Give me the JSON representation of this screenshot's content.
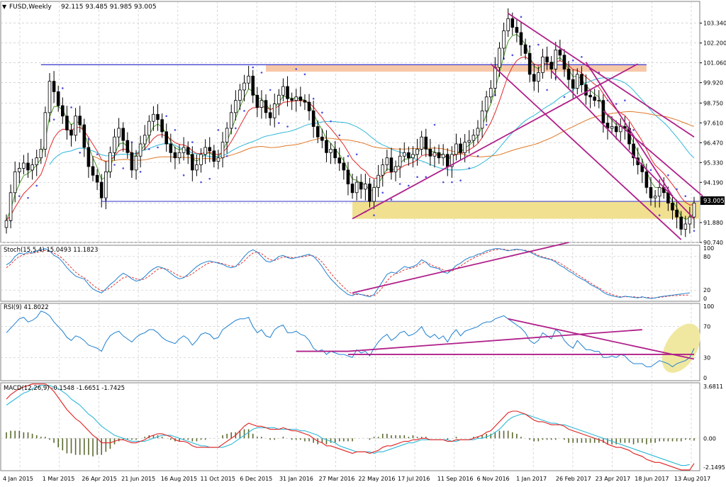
{
  "chart_data": {
    "type": "candlestick",
    "symbol_title": "FUSD,Weekly",
    "ohlc_header": "92.115 93.485 91.985 93.005",
    "last_price_label": "93.005",
    "price_axis": {
      "ylim": [
        90.74,
        104.1
      ],
      "ticks": [
        "103.340",
        "102.200",
        "101.060",
        "99.920",
        "98.750",
        "97.610",
        "96.470",
        "95.330",
        "94.190",
        "93.005",
        "91.880",
        "90.740"
      ]
    },
    "x_labels": [
      "4 Jan 2015",
      "1 Mar 2015",
      "26 Apr 2015",
      "21 Jun 2015",
      "16 Aug 2015",
      "11 Oct 2015",
      "6 Dec 2015",
      "31 Jan 2016",
      "27 Mar 2016",
      "22 May 2016",
      "17 Jul 2016",
      "11 Sep 2016",
      "6 Nov 2016",
      "1 Jan 2017",
      "26 Feb 2017",
      "23 Apr 2017",
      "18 Jun 2017",
      "13 Aug 2017"
    ],
    "weekly_close": [
      92.0,
      93.6,
      94.8,
      95.0,
      95.3,
      94.9,
      95.2,
      95.6,
      96.1,
      98.2,
      100.0,
      99.4,
      98.6,
      98.0,
      97.2,
      96.9,
      98.0,
      97.5,
      96.2,
      95.1,
      94.6,
      94.2,
      93.3,
      94.8,
      95.9,
      96.8,
      97.3,
      96.6,
      95.9,
      94.9,
      95.7,
      96.4,
      96.9,
      97.7,
      98.1,
      97.8,
      97.1,
      96.4,
      95.9,
      95.6,
      95.9,
      96.2,
      95.8,
      94.9,
      95.2,
      95.8,
      96.2,
      96.0,
      95.4,
      95.6,
      96.5,
      97.3,
      98.2,
      98.9,
      99.5,
      99.9,
      100.3,
      99.2,
      98.5,
      98.9,
      98.2,
      97.9,
      98.7,
      99.2,
      99.7,
      99.0,
      98.9,
      99.1,
      98.9,
      98.8,
      98.3,
      97.4,
      96.8,
      96.6,
      95.9,
      96.1,
      95.6,
      95.3,
      94.9,
      94.1,
      93.6,
      94.2,
      93.8,
      94.1,
      93.1,
      93.9,
      94.6,
      95.2,
      95.6,
      94.8,
      95.1,
      95.7,
      95.9,
      95.6,
      95.8,
      96.1,
      96.8,
      96.1,
      95.7,
      95.9,
      95.6,
      95.8,
      95.1,
      95.8,
      96.4,
      95.9,
      96.5,
      96.6,
      96.9,
      97.3,
      98.3,
      99.1,
      99.6,
      100.8,
      101.9,
      102.9,
      103.6,
      103.1,
      102.8,
      102.1,
      101.6,
      100.4,
      100.0,
      100.5,
      101.4,
      101.1,
      100.7,
      101.8,
      101.5,
      100.7,
      100.1,
      99.6,
      100.4,
      99.8,
      99.2,
      99.1,
      98.9,
      98.9,
      97.6,
      97.3,
      97.4,
      97.1,
      97.4,
      97.3,
      96.4,
      95.6,
      95.2,
      94.8,
      93.9,
      93.3,
      93.4,
      93.9,
      93.6,
      93.0,
      92.6,
      92.2,
      91.5,
      91.8,
      92.2,
      93.005
    ]
  },
  "stoch": {
    "label": "Stoch(15,5,4) 15.0493 11.1823",
    "ticks": [
      "80",
      "20"
    ],
    "scale_max": "100",
    "scale_min": "0",
    "main": [
      65,
      70,
      80,
      86,
      84,
      88,
      86,
      90,
      92,
      94,
      90,
      82,
      78,
      70,
      60,
      52,
      45,
      42,
      40,
      30,
      22,
      18,
      15,
      22,
      30,
      36,
      44,
      50,
      46,
      40,
      36,
      38,
      44,
      52,
      58,
      62,
      60,
      56,
      50,
      44,
      40,
      42,
      48,
      55,
      62,
      67,
      70,
      72,
      70,
      68,
      66,
      62,
      60,
      62,
      70,
      80,
      88,
      92,
      88,
      80,
      72,
      70,
      74,
      80,
      82,
      78,
      76,
      78,
      80,
      82,
      84,
      80,
      72,
      62,
      50,
      40,
      32,
      24,
      18,
      12,
      10,
      14,
      12,
      10,
      8,
      12,
      24,
      36,
      48,
      52,
      50,
      56,
      62,
      60,
      62,
      66,
      74,
      70,
      62,
      60,
      58,
      52,
      50,
      56,
      64,
      68,
      74,
      78,
      80,
      84,
      86,
      90,
      92,
      94,
      94,
      92,
      90,
      92,
      93,
      92,
      90,
      88,
      84,
      80,
      78,
      76,
      74,
      70,
      64,
      60,
      54,
      50,
      44,
      40,
      36,
      30,
      26,
      22,
      16,
      12,
      10,
      8,
      7,
      9,
      8,
      7,
      6,
      8,
      6,
      5,
      6,
      8,
      9,
      10,
      11,
      12,
      13,
      14,
      15
    ],
    "signal": [
      60,
      66,
      74,
      80,
      83,
      85,
      86,
      87,
      89,
      91,
      90,
      86,
      82,
      76,
      68,
      60,
      52,
      46,
      42,
      36,
      29,
      23,
      19,
      20,
      24,
      30,
      36,
      42,
      44,
      43,
      40,
      38,
      40,
      45,
      51,
      57,
      59,
      58,
      54,
      49,
      45,
      43,
      45,
      49,
      55,
      60,
      65,
      69,
      70,
      69,
      67,
      65,
      63,
      62,
      66,
      72,
      80,
      86,
      88,
      85,
      79,
      74,
      73,
      76,
      79,
      79,
      78,
      78,
      79,
      80,
      82,
      81,
      77,
      70,
      60,
      50,
      41,
      33,
      25,
      18,
      13,
      12,
      12,
      11,
      10,
      10,
      16,
      25,
      36,
      45,
      49,
      52,
      56,
      58,
      60,
      63,
      68,
      70,
      66,
      62,
      60,
      56,
      53,
      54,
      58,
      63,
      68,
      73,
      77,
      81,
      84,
      87,
      90,
      92,
      93,
      93,
      91,
      91,
      92,
      92,
      91,
      89,
      86,
      82,
      79,
      77,
      75,
      72,
      68,
      63,
      58,
      53,
      48,
      43,
      38,
      33,
      28,
      24,
      19,
      15,
      12,
      10,
      8,
      8,
      8,
      8,
      7,
      7,
      7,
      6,
      6,
      7,
      8,
      9,
      10,
      10,
      11,
      11,
      11.1823
    ]
  },
  "rsi": {
    "label": "RSI(9) 41.8022",
    "ticks": [
      "100",
      "70",
      "30",
      "0"
    ],
    "values": [
      62,
      68,
      74,
      80,
      82,
      76,
      78,
      82,
      90,
      88,
      84,
      76,
      70,
      64,
      56,
      52,
      58,
      56,
      52,
      46,
      44,
      42,
      38,
      50,
      58,
      62,
      64,
      58,
      54,
      50,
      56,
      60,
      62,
      66,
      66,
      62,
      56,
      52,
      50,
      48,
      54,
      58,
      54,
      46,
      52,
      60,
      62,
      60,
      54,
      56,
      66,
      70,
      74,
      78,
      80,
      80,
      82,
      70,
      62,
      66,
      58,
      56,
      66,
      70,
      72,
      62,
      62,
      64,
      60,
      58,
      52,
      42,
      38,
      40,
      34,
      38,
      36,
      34,
      34,
      32,
      30,
      40,
      36,
      38,
      32,
      42,
      50,
      56,
      60,
      52,
      56,
      62,
      64,
      58,
      60,
      64,
      70,
      60,
      56,
      60,
      54,
      58,
      50,
      60,
      66,
      58,
      64,
      66,
      68,
      70,
      74,
      76,
      76,
      80,
      82,
      84,
      80,
      76,
      72,
      68,
      62,
      52,
      48,
      52,
      62,
      58,
      54,
      66,
      62,
      52,
      46,
      42,
      52,
      46,
      40,
      40,
      38,
      38,
      30,
      30,
      32,
      30,
      34,
      32,
      26,
      22,
      22,
      22,
      18,
      18,
      22,
      26,
      24,
      22,
      18,
      22,
      24,
      26,
      30,
      41.8022
    ]
  },
  "macd": {
    "label": "MACD(12,26,9) -0.1548 -1.6651 -1.7425",
    "ticks": [
      "3.6811",
      "0.00",
      "-2.1495"
    ],
    "macd": [
      2.6,
      2.9,
      3.1,
      3.3,
      3.4,
      3.5,
      3.6,
      3.6,
      3.6,
      3.6,
      3.4,
      3.1,
      2.7,
      2.3,
      1.9,
      1.6,
      1.3,
      1.1,
      0.8,
      0.5,
      0.2,
      0.0,
      -0.3,
      -0.3,
      -0.3,
      -0.2,
      -0.1,
      -0.1,
      -0.2,
      -0.3,
      -0.3,
      -0.2,
      -0.1,
      0.1,
      0.2,
      0.3,
      0.3,
      0.2,
      0.1,
      -0.1,
      -0.2,
      -0.2,
      -0.3,
      -0.5,
      -0.6,
      -0.6,
      -0.6,
      -0.6,
      -0.6,
      -0.6,
      -0.4,
      -0.2,
      0.0,
      0.2,
      0.5,
      0.8,
      1.0,
      0.9,
      0.8,
      0.8,
      0.7,
      0.6,
      0.6,
      0.6,
      0.7,
      0.6,
      0.5,
      0.5,
      0.4,
      0.3,
      0.2,
      0.0,
      -0.2,
      -0.3,
      -0.5,
      -0.5,
      -0.6,
      -0.7,
      -0.8,
      -0.9,
      -1.0,
      -0.9,
      -0.9,
      -0.9,
      -1.0,
      -0.9,
      -0.8,
      -0.6,
      -0.5,
      -0.5,
      -0.4,
      -0.3,
      -0.2,
      -0.2,
      -0.1,
      -0.1,
      0.0,
      0.0,
      -0.1,
      -0.1,
      -0.1,
      -0.1,
      -0.2,
      -0.2,
      -0.1,
      -0.1,
      -0.1,
      -0.1,
      0.0,
      0.1,
      0.2,
      0.4,
      0.5,
      0.8,
      1.1,
      1.4,
      1.7,
      1.8,
      1.8,
      1.7,
      1.6,
      1.4,
      1.2,
      1.1,
      1.1,
      1.0,
      0.9,
      0.9,
      0.9,
      0.8,
      0.6,
      0.5,
      0.4,
      0.3,
      0.2,
      0.1,
      0.0,
      -0.1,
      -0.2,
      -0.4,
      -0.5,
      -0.6,
      -0.6,
      -0.7,
      -0.8,
      -1.0,
      -1.1,
      -1.2,
      -1.4,
      -1.5,
      -1.6,
      -1.6,
      -1.7,
      -1.8,
      -1.9,
      -2.0,
      -2.1,
      -2.1,
      -2.1,
      -1.6651
    ],
    "signal": [
      2.2,
      2.4,
      2.6,
      2.8,
      3.0,
      3.1,
      3.3,
      3.4,
      3.5,
      3.5,
      3.5,
      3.4,
      3.3,
      3.1,
      2.9,
      2.6,
      2.4,
      2.2,
      1.9,
      1.6,
      1.4,
      1.1,
      0.8,
      0.6,
      0.4,
      0.2,
      0.1,
      0.0,
      -0.1,
      -0.2,
      -0.2,
      -0.2,
      -0.2,
      -0.1,
      0.0,
      0.1,
      0.2,
      0.2,
      0.2,
      0.1,
      0.0,
      -0.1,
      -0.2,
      -0.3,
      -0.4,
      -0.5,
      -0.5,
      -0.6,
      -0.6,
      -0.6,
      -0.6,
      -0.5,
      -0.4,
      -0.2,
      0.0,
      0.2,
      0.4,
      0.6,
      0.7,
      0.7,
      0.7,
      0.7,
      0.7,
      0.6,
      0.6,
      0.6,
      0.6,
      0.6,
      0.5,
      0.5,
      0.4,
      0.3,
      0.2,
      0.0,
      -0.1,
      -0.2,
      -0.3,
      -0.5,
      -0.6,
      -0.7,
      -0.8,
      -0.9,
      -0.9,
      -0.9,
      -0.9,
      -1.0,
      -0.9,
      -0.9,
      -0.8,
      -0.7,
      -0.6,
      -0.5,
      -0.4,
      -0.3,
      -0.3,
      -0.2,
      -0.1,
      -0.1,
      -0.1,
      -0.1,
      -0.1,
      -0.1,
      -0.1,
      -0.2,
      -0.2,
      -0.1,
      -0.1,
      -0.1,
      -0.1,
      0.0,
      0.0,
      0.1,
      0.2,
      0.4,
      0.6,
      0.9,
      1.2,
      1.4,
      1.5,
      1.6,
      1.6,
      1.5,
      1.4,
      1.3,
      1.2,
      1.1,
      1.0,
      1.0,
      0.9,
      0.9,
      0.8,
      0.7,
      0.6,
      0.5,
      0.4,
      0.3,
      0.2,
      0.1,
      0.0,
      -0.1,
      -0.2,
      -0.3,
      -0.4,
      -0.5,
      -0.6,
      -0.7,
      -0.8,
      -0.9,
      -1.0,
      -1.1,
      -1.2,
      -1.3,
      -1.4,
      -1.5,
      -1.6,
      -1.7,
      -1.8,
      -1.8,
      -1.7425
    ],
    "histogram": [
      0.4,
      0.5,
      0.5,
      0.5,
      0.4,
      0.4,
      0.3,
      0.2,
      0.1,
      0.1,
      -0.1,
      -0.3,
      -0.6,
      -0.8,
      -1.0,
      -1.0,
      -1.1,
      -1.1,
      -1.1,
      -1.1,
      -1.2,
      -1.1,
      -1.1,
      -0.9,
      -0.7,
      -0.4,
      -0.2,
      -0.1,
      -0.1,
      -0.1,
      -0.1,
      0.0,
      0.1,
      0.2,
      0.2,
      0.2,
      0.1,
      0.0,
      -0.1,
      -0.2,
      -0.2,
      -0.1,
      -0.1,
      -0.2,
      -0.2,
      -0.1,
      -0.1,
      0.0,
      0.0,
      0.0,
      0.2,
      0.3,
      0.4,
      0.4,
      0.5,
      0.6,
      0.6,
      0.3,
      0.1,
      0.1,
      0.0,
      -0.1,
      -0.1,
      0.0,
      0.1,
      0.0,
      -0.1,
      -0.1,
      -0.1,
      -0.2,
      -0.2,
      -0.3,
      -0.4,
      -0.3,
      -0.4,
      -0.3,
      -0.3,
      -0.2,
      -0.2,
      -0.2,
      -0.2,
      0.0,
      0.0,
      0.0,
      -0.1,
      0.1,
      0.1,
      0.3,
      0.3,
      0.2,
      0.2,
      0.2,
      0.2,
      0.1,
      0.2,
      0.1,
      0.1,
      0.1,
      0.0,
      0.0,
      0.0,
      0.0,
      -0.1,
      0.0,
      0.1,
      0.0,
      0.0,
      0.0,
      0.1,
      0.1,
      0.2,
      0.3,
      0.3,
      0.4,
      0.5,
      0.5,
      0.5,
      0.4,
      0.3,
      0.1,
      0.0,
      -0.1,
      -0.2,
      -0.2,
      -0.1,
      -0.1,
      -0.1,
      -0.1,
      0.0,
      -0.1,
      -0.3,
      -0.3,
      -0.3,
      -0.3,
      -0.3,
      -0.3,
      -0.3,
      -0.3,
      -0.3,
      -0.4,
      -0.4,
      -0.4,
      -0.3,
      -0.3,
      -0.3,
      -0.4,
      -0.3,
      -0.3,
      -0.4,
      -0.3,
      -0.3,
      -0.2,
      -0.2,
      -0.2,
      -0.2,
      -0.2,
      -0.2,
      -0.1,
      -0.1,
      -0.1548
    ]
  },
  "colors": {
    "candle_up": "#ffffff",
    "candle_down": "#000000",
    "ema_short": "#4a9a2a",
    "ema_medium": "#e02828",
    "ema_long_cyan": "#30b8d8",
    "ema_long_orange": "#e07828",
    "parabolic_sar": "#5050e0",
    "trendlines": "#b0208a",
    "resistance_zone": "#f7c8a8",
    "support_zone": "#f0e090",
    "rsi_highlight": "#f0e8a0",
    "indicator_main": "#2080d0",
    "indicator_signal": "#e02020",
    "histogram": "#5a6a30",
    "grid": "#c8c8c8",
    "support_line": "#4848d0"
  }
}
